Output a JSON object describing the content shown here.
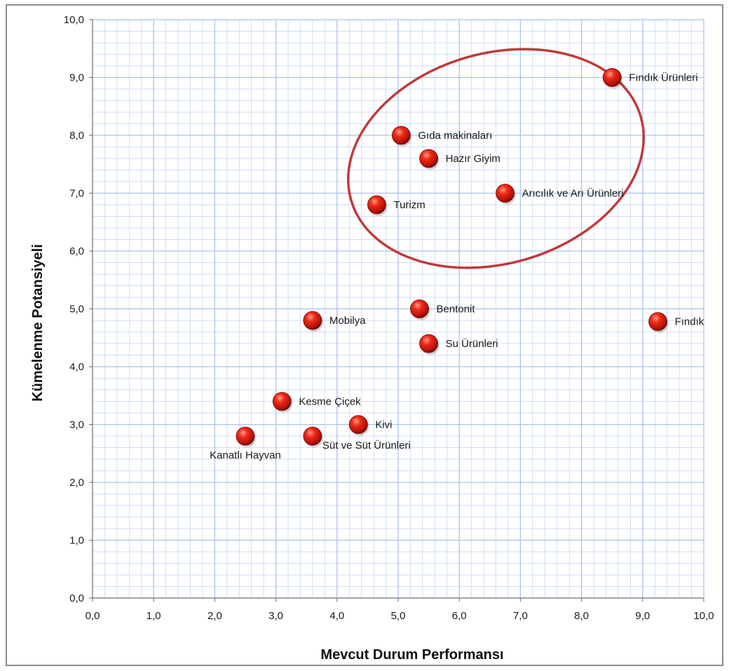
{
  "chart_data": {
    "type": "scatter",
    "title": "",
    "xlabel": "Mevcut Durum Performansı",
    "ylabel": "Kümelenme Potansiyeli",
    "xlim": [
      0,
      10
    ],
    "ylim": [
      0,
      10
    ],
    "x_tick_labels": [
      "0,0",
      "1,0",
      "2,0",
      "3,0",
      "4,0",
      "5,0",
      "6,0",
      "7,0",
      "8,0",
      "9,0",
      "10,0"
    ],
    "y_tick_labels": [
      "0,0",
      "1,0",
      "2,0",
      "3,0",
      "4,0",
      "5,0",
      "6,0",
      "7,0",
      "8,0",
      "9,0",
      "10,0"
    ],
    "grid": true,
    "minor_grid": true,
    "marker_color": "#e01e12",
    "grid_color": "#a9c4ec",
    "ellipse_color": "#c03a3a",
    "points": [
      {
        "label": "Fındık Ürünleri",
        "x": 8.5,
        "y": 9.0
      },
      {
        "label": "Gıda makinaları",
        "x": 5.05,
        "y": 8.0
      },
      {
        "label": "Hazır Giyim",
        "x": 5.5,
        "y": 7.6
      },
      {
        "label": "Arıcılık ve Arı Ürünleri",
        "x": 6.75,
        "y": 7.0
      },
      {
        "label": "Turizm",
        "x": 4.65,
        "y": 6.8
      },
      {
        "label": "Bentonit",
        "x": 5.35,
        "y": 5.0
      },
      {
        "label": "Fındık",
        "x": 9.25,
        "y": 4.78
      },
      {
        "label": "Mobilya",
        "x": 3.6,
        "y": 4.8
      },
      {
        "label": "Su Ürünleri",
        "x": 5.5,
        "y": 4.4
      },
      {
        "label": "Kesme Çiçek",
        "x": 3.1,
        "y": 3.4
      },
      {
        "label": "Kivi",
        "x": 4.35,
        "y": 3.0
      },
      {
        "label": "Kanatlı Hayvan",
        "x": 2.5,
        "y": 2.8
      },
      {
        "label": "Süt ve Süt Ürünleri",
        "x": 3.6,
        "y": 2.8
      }
    ],
    "highlight_group": [
      "Fındık Ürünleri",
      "Gıda makinaları",
      "Hazır Giyim",
      "Arıcılık ve Arı Ürünleri",
      "Turizm"
    ]
  }
}
